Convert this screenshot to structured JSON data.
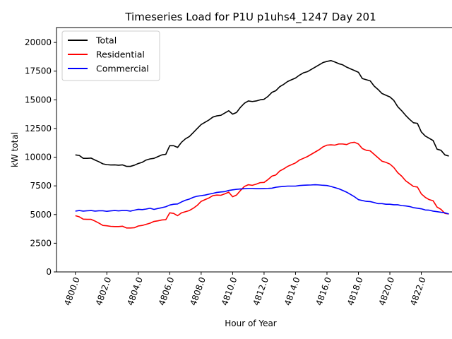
{
  "chart_data": {
    "type": "line",
    "title": "Timeseries Load for P1U p1uhs4_1247  Day 201",
    "xlabel": "Hour of Year",
    "ylabel": "kW total",
    "xlim": [
      4798.8,
      4824.4
    ],
    "ylim": [
      0,
      21300
    ],
    "x_start": 4800.0,
    "x_step": 0.25,
    "xticks": [
      4800,
      4802,
      4804,
      4806,
      4808,
      4810,
      4812,
      4814,
      4816,
      4818,
      4820,
      4822
    ],
    "xtick_labels": [
      "4800.0",
      "4802.0",
      "4804.0",
      "4806.0",
      "4808.0",
      "4810.0",
      "4812.0",
      "4814.0",
      "4816.0",
      "4818.0",
      "4820.0",
      "4822.0"
    ],
    "yticks": [
      0,
      2500,
      5000,
      7500,
      10000,
      12500,
      15000,
      17500,
      20000
    ],
    "ytick_labels": [
      "0",
      "2500",
      "5000",
      "7500",
      "10000",
      "12500",
      "15000",
      "17500",
      "20000"
    ],
    "grid": false,
    "legend_position": "top-left",
    "series": [
      {
        "name": "Total",
        "color": "#000000",
        "values": [
          10200,
          10150,
          9900,
          9900,
          9920,
          9750,
          9600,
          9420,
          9350,
          9320,
          9330,
          9300,
          9330,
          9200,
          9200,
          9300,
          9450,
          9550,
          9750,
          9850,
          9900,
          10050,
          10200,
          10250,
          11000,
          11000,
          10850,
          11300,
          11600,
          11800,
          12150,
          12500,
          12850,
          13050,
          13250,
          13500,
          13600,
          13650,
          13850,
          14050,
          13750,
          13900,
          14350,
          14700,
          14900,
          14850,
          14900,
          15000,
          15050,
          15300,
          15650,
          15800,
          16150,
          16350,
          16600,
          16750,
          16900,
          17150,
          17350,
          17450,
          17650,
          17850,
          18050,
          18250,
          18350,
          18420,
          18300,
          18150,
          18050,
          17850,
          17700,
          17550,
          17400,
          16850,
          16750,
          16650,
          16200,
          15900,
          15550,
          15400,
          15250,
          14950,
          14400,
          14050,
          13650,
          13300,
          13000,
          12950,
          12200,
          11850,
          11650,
          11450,
          10700,
          10600,
          10200,
          10100
        ]
      },
      {
        "name": "Residential",
        "color": "#ff0000",
        "values": [
          4900,
          4800,
          4600,
          4580,
          4580,
          4430,
          4250,
          4050,
          4020,
          3970,
          3950,
          3950,
          3980,
          3830,
          3830,
          3850,
          4000,
          4050,
          4150,
          4250,
          4400,
          4450,
          4530,
          4550,
          5150,
          5100,
          4900,
          5150,
          5250,
          5350,
          5550,
          5800,
          6150,
          6300,
          6450,
          6650,
          6700,
          6680,
          6800,
          6950,
          6550,
          6700,
          7100,
          7450,
          7600,
          7550,
          7650,
          7780,
          7800,
          8050,
          8350,
          8450,
          8800,
          8980,
          9200,
          9350,
          9500,
          9750,
          9900,
          10050,
          10250,
          10450,
          10650,
          10900,
          11050,
          11080,
          11050,
          11150,
          11150,
          11100,
          11250,
          11300,
          11150,
          10750,
          10600,
          10550,
          10250,
          9950,
          9650,
          9550,
          9400,
          9100,
          8650,
          8350,
          7950,
          7700,
          7450,
          7400,
          6800,
          6500,
          6300,
          6200,
          5650,
          5450,
          5100,
          5050
        ]
      },
      {
        "name": "Commercial",
        "color": "#0000ff",
        "values": [
          5300,
          5350,
          5300,
          5330,
          5350,
          5300,
          5330,
          5330,
          5280,
          5320,
          5350,
          5320,
          5350,
          5350,
          5300,
          5380,
          5450,
          5430,
          5480,
          5550,
          5450,
          5530,
          5600,
          5680,
          5830,
          5900,
          5920,
          6100,
          6250,
          6350,
          6500,
          6600,
          6650,
          6700,
          6780,
          6850,
          6930,
          6970,
          7000,
          7100,
          7150,
          7200,
          7230,
          7250,
          7280,
          7280,
          7250,
          7250,
          7270,
          7280,
          7300,
          7380,
          7420,
          7450,
          7480,
          7480,
          7480,
          7530,
          7550,
          7570,
          7580,
          7600,
          7580,
          7550,
          7530,
          7450,
          7350,
          7250,
          7100,
          6950,
          6750,
          6550,
          6300,
          6220,
          6150,
          6130,
          6050,
          5950,
          5950,
          5900,
          5900,
          5850,
          5850,
          5780,
          5750,
          5700,
          5600,
          5550,
          5500,
          5400,
          5380,
          5300,
          5250,
          5200,
          5150,
          5050
        ]
      }
    ]
  }
}
